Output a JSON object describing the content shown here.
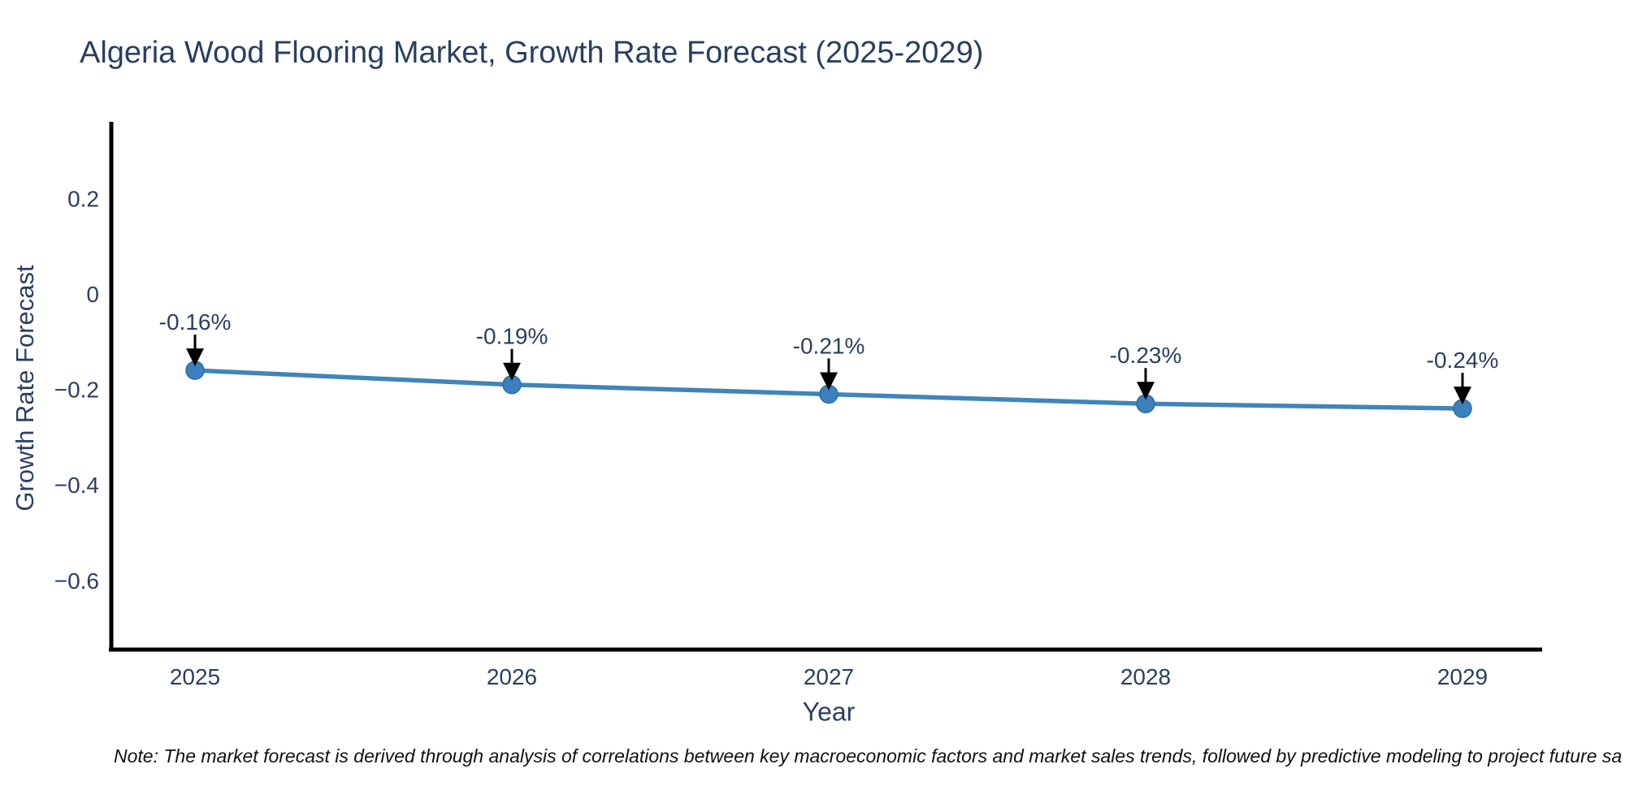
{
  "page": {
    "title": "Algeria Wood Flooring Market, Growth Rate Forecast (2025-2029)",
    "note": "Note: The market forecast is derived through analysis of correlations between key macroeconomic factors and market sales trends, followed by predictive modeling to project future sa"
  },
  "chart_data": {
    "type": "line",
    "title": "Algeria Wood Flooring Market, Growth Rate Forecast (2025-2029)",
    "xlabel": "Year",
    "ylabel": "Growth Rate Forecast",
    "x": [
      2025,
      2026,
      2027,
      2028,
      2029
    ],
    "xtick_labels": [
      "2025",
      "2026",
      "2027",
      "2028",
      "2029"
    ],
    "series": [
      {
        "name": "Growth Rate Forecast",
        "values": [
          -0.16,
          -0.19,
          -0.21,
          -0.23,
          -0.24
        ]
      }
    ],
    "point_labels": [
      "-0.16%",
      "-0.19%",
      "-0.21%",
      "-0.23%",
      "-0.24%"
    ],
    "yticks": {
      "values": [
        0.2,
        0,
        -0.2,
        -0.4,
        -0.6
      ],
      "labels": [
        "0.2",
        "0",
        "−0.2",
        "−0.4",
        "−0.6"
      ]
    },
    "ylim": [
      -0.75,
      0.36
    ],
    "grid": false,
    "legend": false,
    "annotation_style": "black down-arrow from label to marker",
    "colors": {
      "line": "#4185b8",
      "marker": "#3c80bd",
      "marker_edge": "#2e6da4",
      "axis": "#000000",
      "text": "#2a3f5f",
      "arrow": "#000000",
      "note_text": "#111111"
    }
  }
}
